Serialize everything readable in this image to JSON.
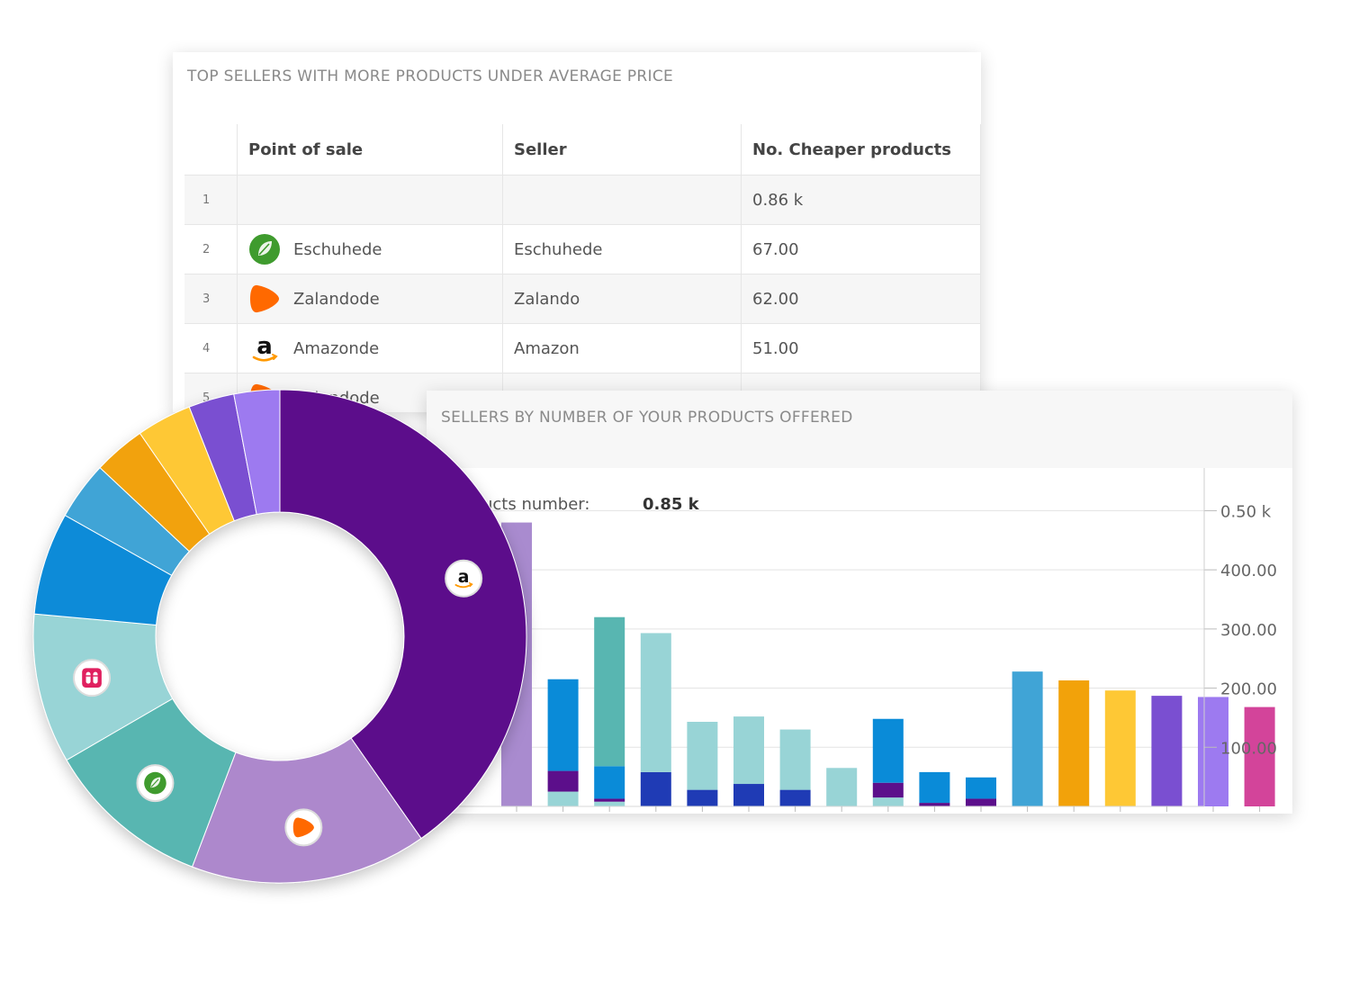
{
  "table_card": {
    "title": "TOP SELLERS WITH MORE PRODUCTS UNDER AVERAGE PRICE",
    "columns": [
      "Point of sale",
      "Seller",
      "No. Cheaper products"
    ],
    "rows": [
      {
        "index": "1",
        "point_of_sale": "",
        "seller": "",
        "value": "0.86 k",
        "logo": ""
      },
      {
        "index": "2",
        "point_of_sale": "Eschuhede",
        "seller": "Eschuhede",
        "value": "67.00",
        "logo": "leaf-icon"
      },
      {
        "index": "3",
        "point_of_sale": "Zalandode",
        "seller": "Zalando",
        "value": "62.00",
        "logo": "zalando-icon"
      },
      {
        "index": "4",
        "point_of_sale": "Amazonde",
        "seller": "Amazon",
        "value": "51.00",
        "logo": "amazon-icon"
      },
      {
        "index": "5",
        "point_of_sale": "Zalandode",
        "seller": "",
        "value": "",
        "logo": "zalando-icon"
      }
    ]
  },
  "chart_card": {
    "title": "SELLERS BY NUMBER OF YOUR PRODUCTS OFFERED",
    "summary_label": "Products number:",
    "summary_value": "0.85 k"
  },
  "chart_data": [
    {
      "type": "bar",
      "stacked": true,
      "title": "SELLERS BY NUMBER OF YOUR PRODUCTS OFFERED",
      "y_axis_side": "right",
      "ylim": [
        0,
        520
      ],
      "y_ticks": [
        {
          "value": 100,
          "label": "100.00"
        },
        {
          "value": 200,
          "label": "200.00"
        },
        {
          "value": 300,
          "label": "300.00"
        },
        {
          "value": 400,
          "label": "400.00"
        },
        {
          "value": 500,
          "label": "0.50 k"
        }
      ],
      "bars": [
        {
          "segments": [
            {
              "value": 480,
              "color": "#a98bcf"
            }
          ]
        },
        {
          "segments": [
            {
              "value": 25,
              "color": "#98d4d6"
            },
            {
              "value": 35,
              "color": "#5c0f8b"
            },
            {
              "value": 155,
              "color": "#0a8bd8"
            }
          ]
        },
        {
          "segments": [
            {
              "value": 8,
              "color": "#98d4d6"
            },
            {
              "value": 5,
              "color": "#5c0f8b"
            },
            {
              "value": 55,
              "color": "#0a8bd8"
            },
            {
              "value": 252,
              "color": "#58b6b1"
            }
          ]
        },
        {
          "segments": [
            {
              "value": 58,
              "color": "#1f3bb5"
            },
            {
              "value": 235,
              "color": "#98d4d6"
            }
          ]
        },
        {
          "segments": [
            {
              "value": 28,
              "color": "#1f3bb5"
            },
            {
              "value": 115,
              "color": "#98d4d6"
            }
          ]
        },
        {
          "segments": [
            {
              "value": 38,
              "color": "#1f3bb5"
            },
            {
              "value": 114,
              "color": "#98d4d6"
            }
          ]
        },
        {
          "segments": [
            {
              "value": 28,
              "color": "#1f3bb5"
            },
            {
              "value": 102,
              "color": "#98d4d6"
            }
          ]
        },
        {
          "segments": [
            {
              "value": 65,
              "color": "#98d4d6"
            }
          ]
        },
        {
          "segments": [
            {
              "value": 15,
              "color": "#98d4d6"
            },
            {
              "value": 25,
              "color": "#5c0f8b"
            },
            {
              "value": 108,
              "color": "#0a8bd8"
            }
          ]
        },
        {
          "segments": [
            {
              "value": 6,
              "color": "#5c0f8b"
            },
            {
              "value": 52,
              "color": "#0a8bd8"
            }
          ]
        },
        {
          "segments": [
            {
              "value": 13,
              "color": "#5c0f8b"
            },
            {
              "value": 36,
              "color": "#0a8bd8"
            }
          ]
        },
        {
          "segments": [
            {
              "value": 228,
              "color": "#40a4d6"
            }
          ]
        },
        {
          "segments": [
            {
              "value": 213,
              "color": "#f2a20a"
            }
          ]
        },
        {
          "segments": [
            {
              "value": 196,
              "color": "#fec835"
            }
          ]
        },
        {
          "segments": [
            {
              "value": 187,
              "color": "#7a4fd1"
            }
          ]
        },
        {
          "segments": [
            {
              "value": 185,
              "color": "#9d7af0"
            }
          ]
        },
        {
          "segments": [
            {
              "value": 168,
              "color": "#d3449a"
            }
          ]
        }
      ]
    },
    {
      "type": "pie",
      "donut": true,
      "slices": [
        {
          "value": 39.0,
          "color": "#5c0f8b",
          "icon": "amazon-icon"
        },
        {
          "value": 15.0,
          "color": "#ad88cc",
          "icon": "zalando-icon"
        },
        {
          "value": 10.5,
          "color": "#58b6b1",
          "icon": "leaf-icon"
        },
        {
          "value": 9.5,
          "color": "#98d4d6",
          "icon": "sandals-icon"
        },
        {
          "value": 6.5,
          "color": "#0a8bd8",
          "icon": ""
        },
        {
          "value": 3.7,
          "color": "#40a4d6",
          "icon": ""
        },
        {
          "value": 3.3,
          "color": "#f2a20a",
          "icon": ""
        },
        {
          "value": 3.5,
          "color": "#fec835",
          "icon": ""
        },
        {
          "value": 2.9,
          "color": "#7a4fd1",
          "icon": ""
        },
        {
          "value": 2.9,
          "color": "#9d7af0",
          "icon": ""
        }
      ]
    }
  ]
}
